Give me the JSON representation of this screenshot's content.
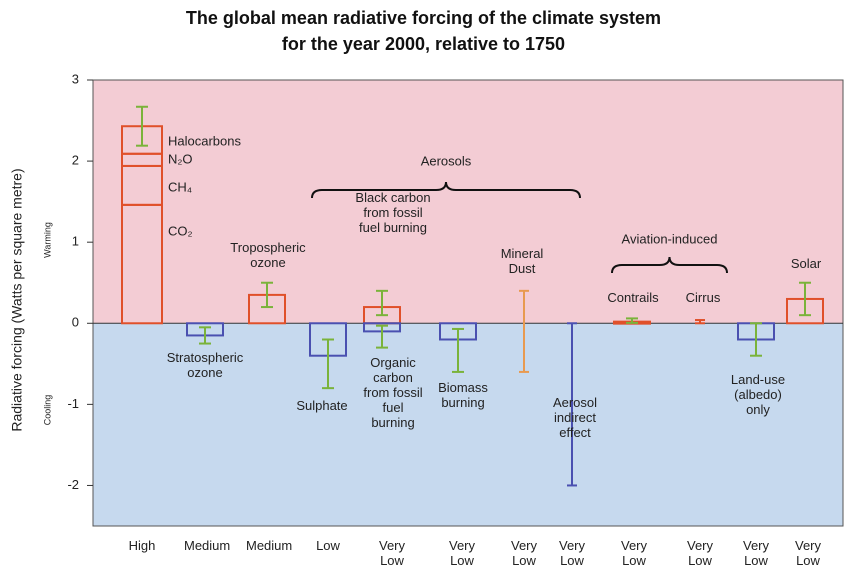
{
  "chart_data": {
    "type": "forcing",
    "title": [
      "The global mean radiative forcing of the climate system",
      "for the year 2000, relative to 1750"
    ],
    "ylabel": "Radiative forcing (Watts per square metre)",
    "warming_label": "Warming",
    "cooling_label": "Cooling",
    "warming_color": "#f3ccd4",
    "cooling_color": "#c6d9ee",
    "positive_color": "#e0502a",
    "negative_color": "#4a50b0",
    "error_color": "#7ab33a",
    "ylim": [
      -2.5,
      3
    ],
    "yticks": [
      -2,
      -1,
      0,
      1,
      2,
      3
    ],
    "groups": [
      {
        "label": "Aerosols"
      },
      {
        "label": "Aviation-induced"
      }
    ],
    "columns": [
      {
        "level": "High",
        "bars": [
          {
            "segments": [
              {
                "name": "CO₂",
                "value": 1.46
              },
              {
                "name": "CH₄",
                "value": 0.48
              },
              {
                "name": "N₂O",
                "value": 0.15
              },
              {
                "name": "Halocarbons",
                "value": 0.34
              }
            ],
            "range": [
              2.19,
              2.67
            ]
          }
        ]
      },
      {
        "level": "Medium",
        "bars": [
          {
            "name": "Stratospheric ozone",
            "value": -0.15,
            "range": [
              -0.25,
              -0.05
            ]
          }
        ]
      },
      {
        "level": "Medium",
        "bars": [
          {
            "name": "Tropospheric ozone",
            "value": 0.35,
            "range": [
              0.2,
              0.5
            ]
          }
        ]
      },
      {
        "level": "Low",
        "bars": [
          {
            "name": "Sulphate",
            "value": -0.4,
            "range": [
              -0.8,
              -0.2
            ]
          }
        ]
      },
      {
        "level": "Very Low",
        "bars": [
          {
            "name": "Black carbon from fossil fuel burning",
            "value": 0.2,
            "range": [
              0.1,
              0.4
            ]
          },
          {
            "name": "Organic carbon from fossil fuel burning",
            "value": -0.1,
            "range": [
              -0.3,
              -0.03
            ]
          }
        ]
      },
      {
        "level": "Very Low",
        "bars": [
          {
            "name": "Biomass burning",
            "value": -0.2,
            "range": [
              -0.6,
              -0.07
            ]
          }
        ]
      },
      {
        "level": "Very Low",
        "bars": [
          {
            "name": "Mineral Dust",
            "range": [
              -0.6,
              0.4
            ],
            "color": "#e89a50"
          }
        ]
      },
      {
        "level": "Very Low",
        "bars": [
          {
            "name": "Aerosol indirect effect",
            "range": [
              -2,
              0
            ],
            "color": "#4a50b0"
          }
        ]
      },
      {
        "level": "Very Low",
        "bars": [
          {
            "name": "Contrails",
            "value": 0.02,
            "range": [
              0.005,
              0.06
            ]
          }
        ]
      },
      {
        "level": "Very Low",
        "bars": [
          {
            "name": "Cirrus",
            "range": [
              0,
              0.04
            ],
            "color": "#e0502a"
          }
        ]
      },
      {
        "level": "Very Low",
        "bars": [
          {
            "name": "Land-use (albedo) only",
            "value": -0.2,
            "range": [
              -0.4,
              0
            ]
          }
        ]
      },
      {
        "level": "Very Low",
        "bars": [
          {
            "name": "Solar",
            "value": 0.3,
            "range": [
              0.1,
              0.5
            ]
          }
        ]
      }
    ]
  }
}
